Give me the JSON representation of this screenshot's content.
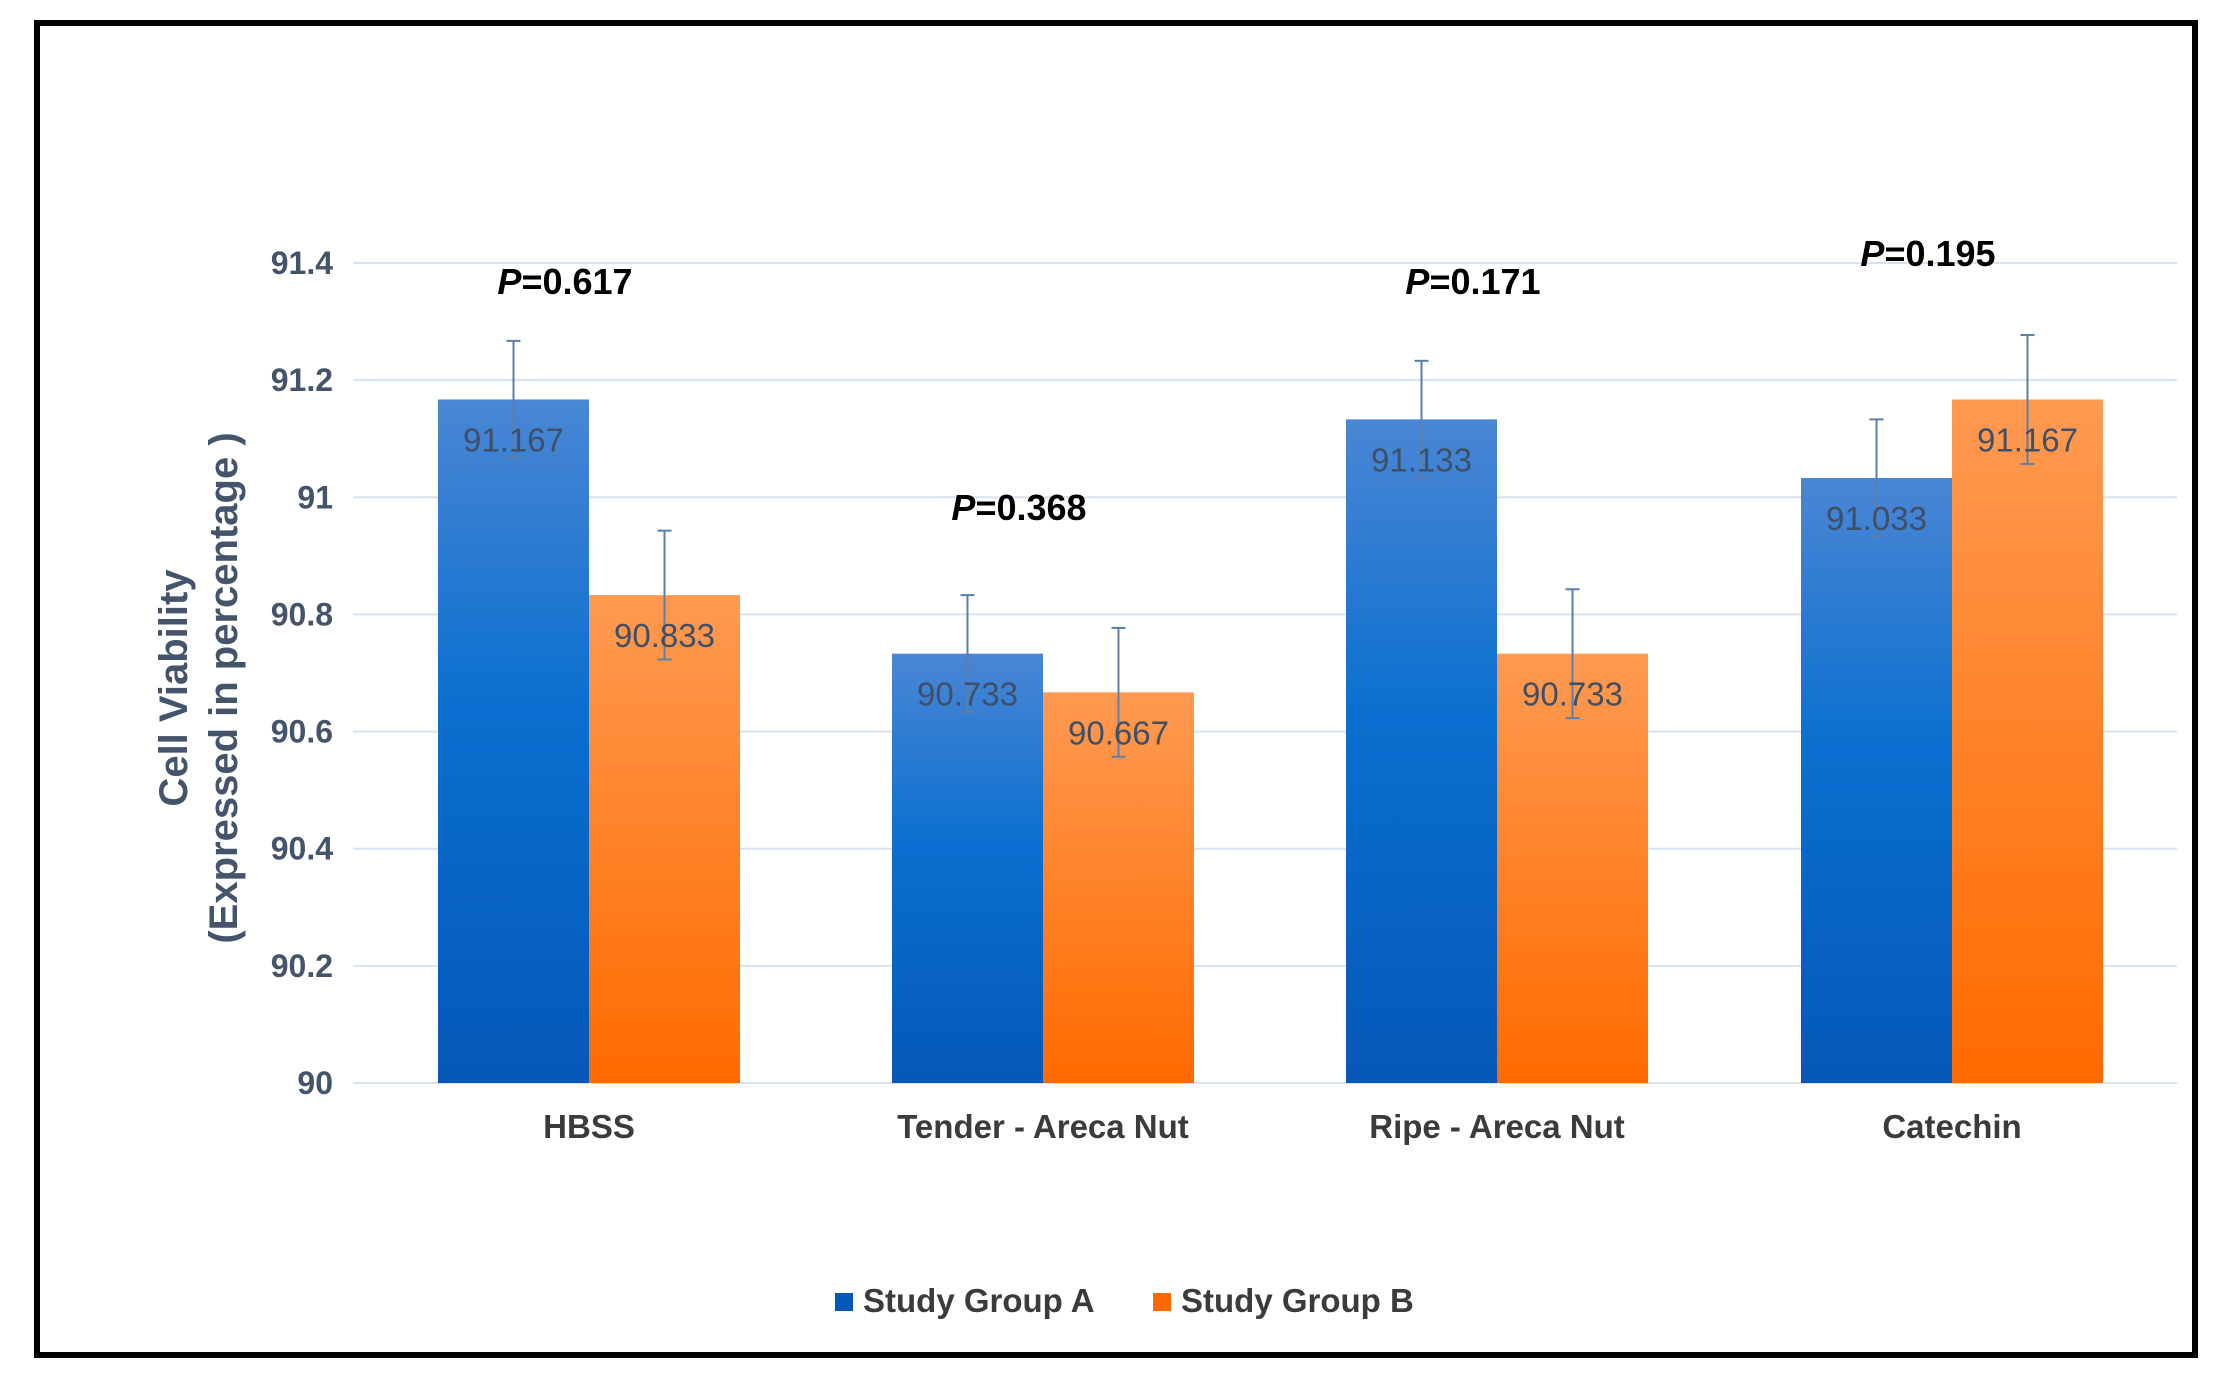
{
  "chart_data": {
    "type": "bar",
    "title": "",
    "xlabel": "",
    "ylabel_line1": "Cell Viability",
    "ylabel_line2": "(Expressed in percentage )",
    "ylim": [
      90,
      91.4
    ],
    "yticks": [
      90,
      90.2,
      90.4,
      90.6,
      90.8,
      91,
      91.2,
      91.4
    ],
    "ytick_labels": [
      "90",
      "90.2",
      "90.4",
      "90.6",
      "90.8",
      "91",
      "91.2",
      "91.4"
    ],
    "categories": [
      "HBSS",
      "Tender - Areca Nut",
      "Ripe - Areca Nut",
      "Catechin"
    ],
    "series": [
      {
        "name": "Study Group A",
        "values": [
          91.167,
          90.733,
          91.133,
          91.033
        ],
        "labels": [
          "91.167",
          "90.733",
          "91.133",
          "91.033"
        ],
        "error": [
          0.1,
          0.1,
          0.1,
          0.1
        ]
      },
      {
        "name": "Study Group B",
        "values": [
          90.833,
          90.667,
          90.733,
          91.167
        ],
        "labels": [
          "90.833",
          "90.667",
          "90.733",
          "91.167"
        ],
        "error": [
          0.11,
          0.11,
          0.11,
          0.11
        ]
      }
    ],
    "p_values": [
      "0.617",
      "0.368",
      "0.171",
      "0.195"
    ],
    "p_prefix": "P",
    "p_separator": "=",
    "legend_position": "bottom",
    "grid": true,
    "colors": {
      "group_a_top": "#4A86D4",
      "group_a_bottom": "#0558B8",
      "group_b_top": "#FF9A52",
      "group_b_bottom": "#FF6A00",
      "grid": "#D9E2EF",
      "error_bar": "#5B7FA8"
    }
  }
}
